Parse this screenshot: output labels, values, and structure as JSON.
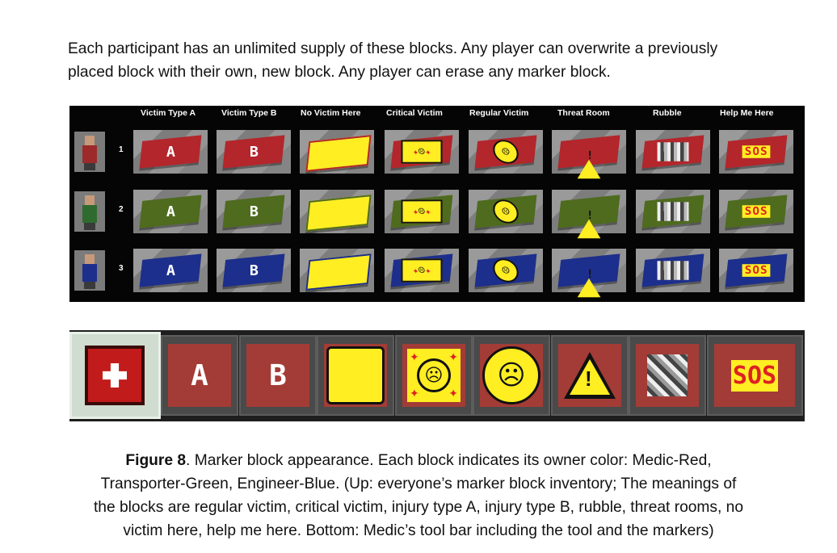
{
  "intro": {
    "line1": "Each participant has an unlimited supply of these blocks. Any player can overwrite a previously",
    "line2": "placed block with their own, new block. Any player can erase any marker block."
  },
  "inventory": {
    "headers": [
      "Victim Type A",
      "Victim Type B",
      "No Victim Here",
      "Critical Victim",
      "Regular Victim",
      "Threat Room",
      "Rubble",
      "Help Me Here"
    ],
    "rows": [
      {
        "number": "1",
        "color": "#b3262b",
        "avatar_color": "#9c2a2a"
      },
      {
        "number": "2",
        "color": "#4e6b1e",
        "avatar_color": "#2f6b2f"
      },
      {
        "number": "3",
        "color": "#1d2f8c",
        "avatar_color": "#1d2f8c"
      }
    ],
    "letters": {
      "a": "A",
      "b": "B",
      "sos": "SOS"
    }
  },
  "toolbar": {
    "slot_color": "#a33c36",
    "letters": {
      "a": "A",
      "b": "B",
      "sos": "SOS"
    }
  },
  "caption": {
    "label": "Figure 8",
    "line1_rest": ". Marker block appearance. Each block indicates its owner color: Medic-Red,",
    "line2": "Transporter-Green, Engineer-Blue. (Up: everyone’s marker block inventory; The meanings of",
    "line3": "the blocks are regular victim, critical victim, injury type A, injury type B, rubble, threat rooms, no",
    "line4": "victim here, help me here. Bottom: Medic’s tool bar including the tool and the markers)"
  }
}
